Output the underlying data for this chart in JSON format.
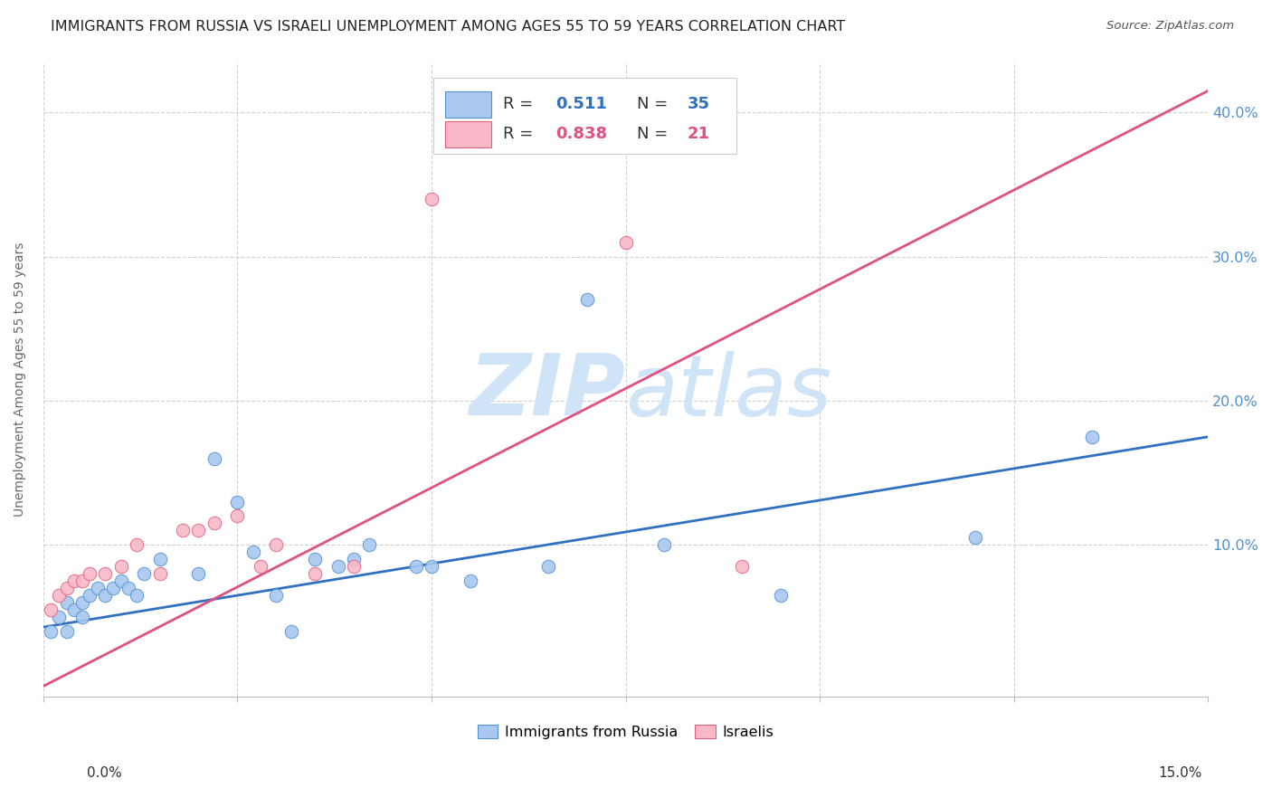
{
  "title": "IMMIGRANTS FROM RUSSIA VS ISRAELI UNEMPLOYMENT AMONG AGES 55 TO 59 YEARS CORRELATION CHART",
  "source": "Source: ZipAtlas.com",
  "ylabel": "Unemployment Among Ages 55 to 59 years",
  "xlim": [
    0.0,
    0.15
  ],
  "ylim": [
    -0.005,
    0.435
  ],
  "yticks": [
    0.1,
    0.2,
    0.3,
    0.4
  ],
  "ytick_labels": [
    "10.0%",
    "20.0%",
    "30.0%",
    "40.0%"
  ],
  "xticks": [
    0.0,
    0.025,
    0.05,
    0.075,
    0.1,
    0.125,
    0.15
  ],
  "r_blue": "0.511",
  "n_blue": "35",
  "r_pink": "0.838",
  "n_pink": "21",
  "blue_scatter_x": [
    0.001,
    0.002,
    0.003,
    0.003,
    0.004,
    0.005,
    0.005,
    0.006,
    0.007,
    0.008,
    0.009,
    0.01,
    0.011,
    0.012,
    0.013,
    0.015,
    0.02,
    0.022,
    0.025,
    0.027,
    0.03,
    0.032,
    0.035,
    0.038,
    0.04,
    0.042,
    0.048,
    0.05,
    0.055,
    0.065,
    0.07,
    0.08,
    0.095,
    0.12,
    0.135
  ],
  "blue_scatter_y": [
    0.04,
    0.05,
    0.06,
    0.04,
    0.055,
    0.05,
    0.06,
    0.065,
    0.07,
    0.065,
    0.07,
    0.075,
    0.07,
    0.065,
    0.08,
    0.09,
    0.08,
    0.16,
    0.13,
    0.095,
    0.065,
    0.04,
    0.09,
    0.085,
    0.09,
    0.1,
    0.085,
    0.085,
    0.075,
    0.085,
    0.27,
    0.1,
    0.065,
    0.105,
    0.175
  ],
  "pink_scatter_x": [
    0.001,
    0.002,
    0.003,
    0.004,
    0.005,
    0.006,
    0.008,
    0.01,
    0.012,
    0.015,
    0.018,
    0.02,
    0.022,
    0.025,
    0.028,
    0.03,
    0.035,
    0.04,
    0.05,
    0.075,
    0.09
  ],
  "pink_scatter_y": [
    0.055,
    0.065,
    0.07,
    0.075,
    0.075,
    0.08,
    0.08,
    0.085,
    0.1,
    0.08,
    0.11,
    0.11,
    0.115,
    0.12,
    0.085,
    0.1,
    0.08,
    0.085,
    0.34,
    0.31,
    0.085
  ],
  "blue_line_x": [
    0.0,
    0.15
  ],
  "blue_line_y": [
    0.043,
    0.175
  ],
  "pink_line_x": [
    0.0,
    0.15
  ],
  "pink_line_y": [
    0.002,
    0.415
  ],
  "blue_scatter_color": "#A8C8F0",
  "blue_scatter_edge": "#5090D0",
  "blue_line_color": "#3070C0",
  "pink_scatter_color": "#F8B8C8",
  "pink_scatter_edge": "#E06080",
  "pink_line_color": "#E05080",
  "watermark_color": "#D0E4F8",
  "background_color": "#FFFFFF",
  "grid_color": "#CCCCCC",
  "title_fontsize": 11.5,
  "tick_label_color": "#5090D0",
  "ylabel_color": "#666666"
}
